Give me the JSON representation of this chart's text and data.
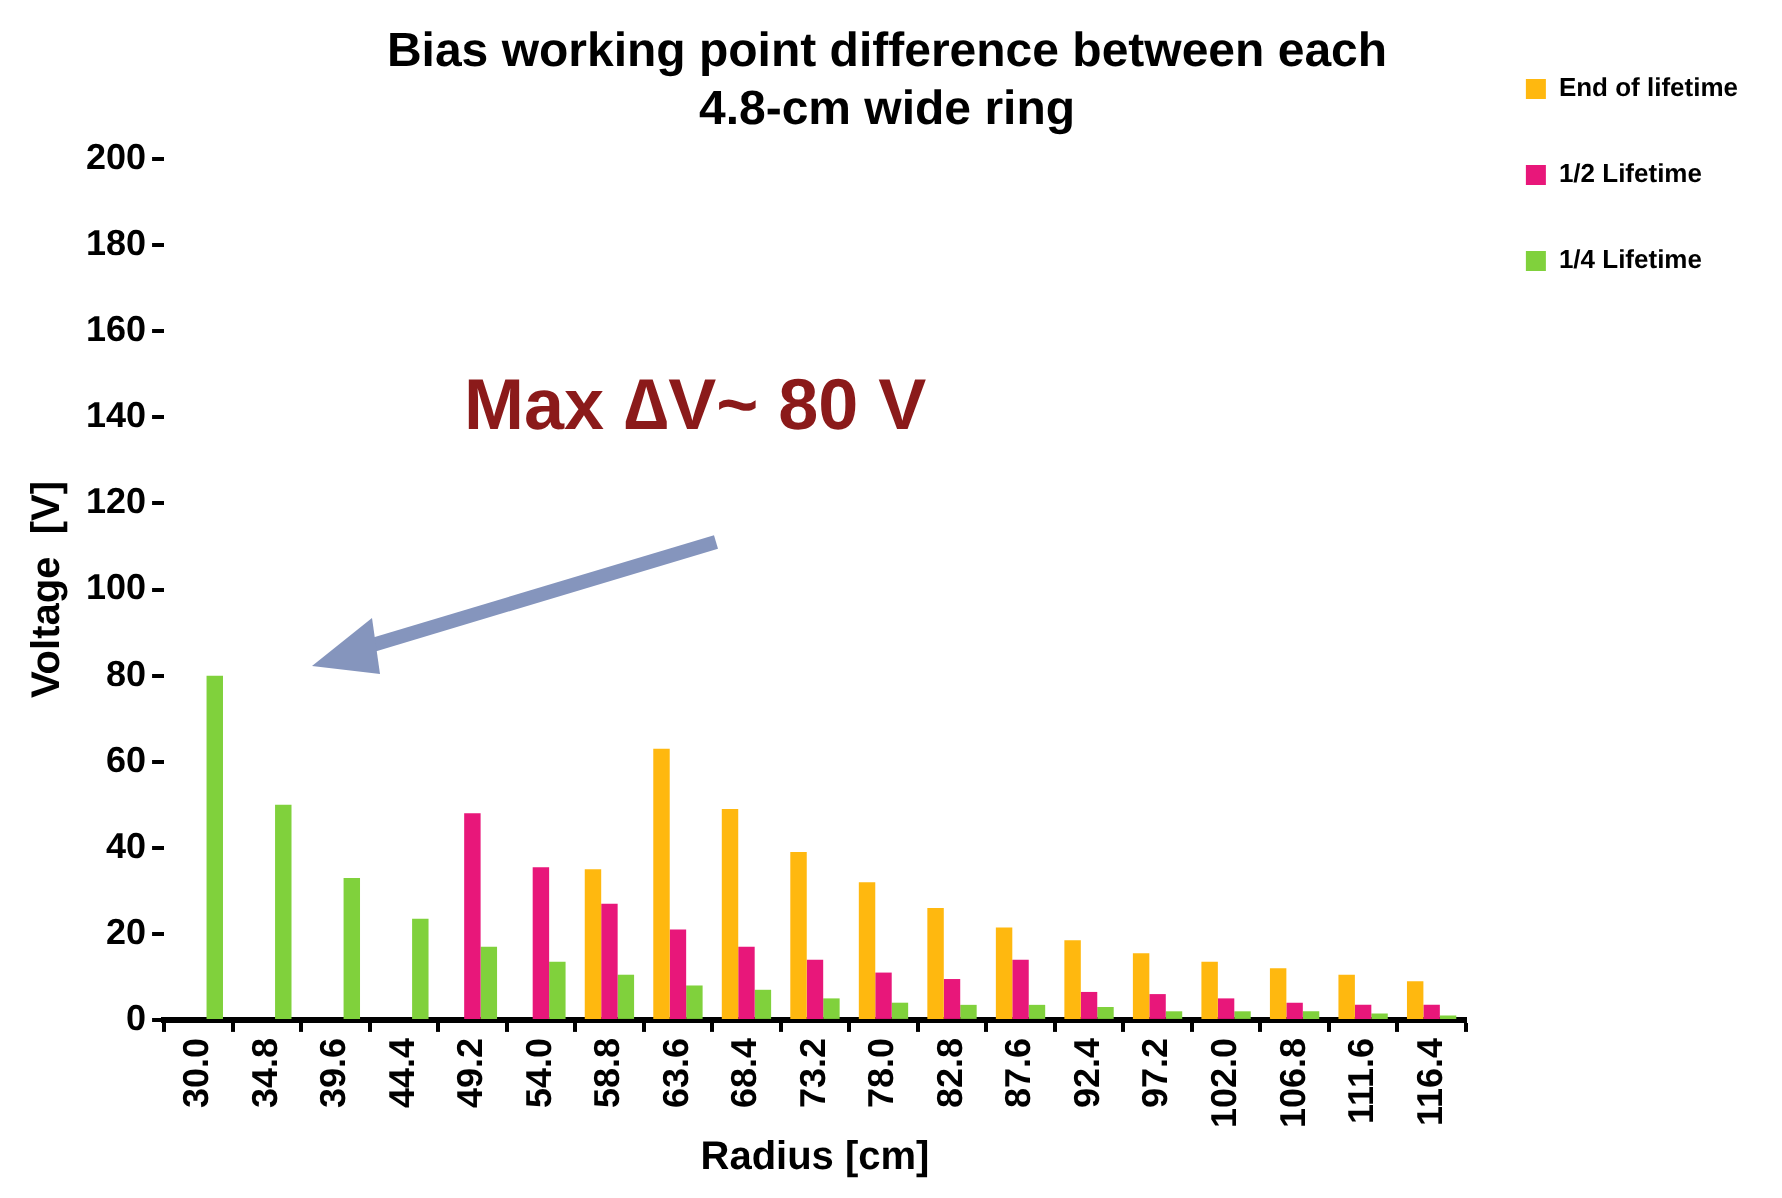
{
  "chart_data": {
    "type": "bar",
    "title": [
      "Bias working point difference between each",
      "4.8-cm wide ring"
    ],
    "xlabel": "Radius [cm]",
    "ylabel": "Voltage  [V]",
    "categories": [
      "30.0",
      "34.8",
      "39.6",
      "44.4",
      "49.2",
      "54.0",
      "58.8",
      "63.6",
      "68.4",
      "73.2",
      "78.0",
      "82.8",
      "87.6",
      "92.4",
      "97.2",
      "102.0",
      "106.8",
      "111.6",
      "116.4"
    ],
    "series": [
      {
        "name": "End of lifetime",
        "color": "#ffb80f",
        "values": [
          null,
          null,
          null,
          null,
          null,
          null,
          35,
          63,
          49,
          39,
          32,
          26,
          21.5,
          18.5,
          15.5,
          13.5,
          12,
          10.5,
          9
        ]
      },
      {
        "name": "1/2 Lifetime",
        "color": "#e8177a",
        "values": [
          null,
          null,
          null,
          null,
          48,
          35.5,
          27,
          21,
          17,
          14,
          11,
          9.5,
          14,
          6.5,
          6,
          5,
          4,
          3.5,
          3.5
        ]
      },
      {
        "name": "1/4 Lifetime",
        "color": "#80d13c",
        "values": [
          80,
          50,
          33,
          23.5,
          17,
          13.5,
          10.5,
          8,
          7,
          5,
          4,
          3.5,
          3.5,
          3,
          2,
          2,
          2,
          1.5,
          1
        ]
      }
    ],
    "ylim": [
      0,
      200
    ],
    "yticks": [
      0,
      20,
      40,
      60,
      80,
      100,
      120,
      140,
      160,
      180,
      200
    ],
    "grid": false,
    "legend": "top right",
    "annotations": [
      "Max ∆V~ 80 V"
    ]
  }
}
